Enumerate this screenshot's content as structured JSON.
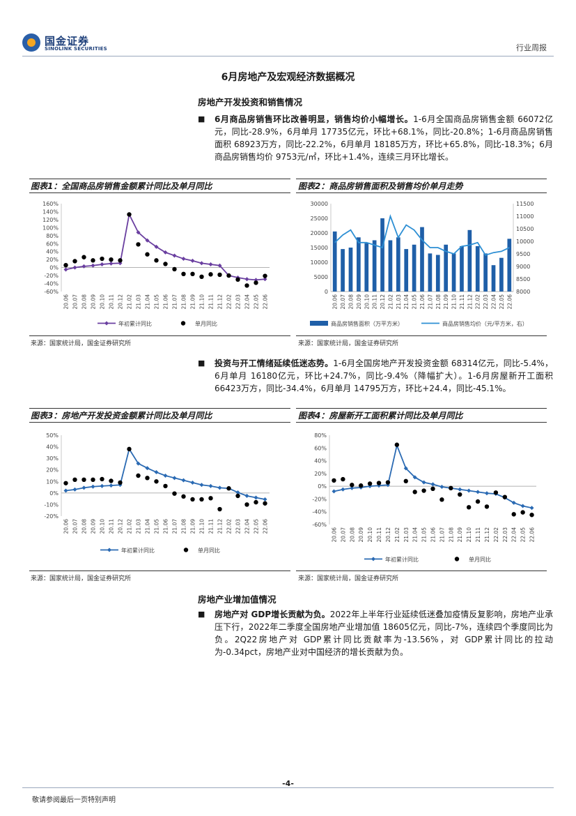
{
  "header": {
    "logo_cn": "国金证券",
    "logo_en": "SINOLINK SECURITIES",
    "report_type": "行业周报"
  },
  "main_title": "6月房地产及宏观经济数据概况",
  "sections": {
    "s1_title": "房地产开发投资和销售情况",
    "p1_bold": "6月商品房销售环比改善明显，销售均价小幅增长。",
    "p1_rest": "1-6月全国商品房销售金额 66072亿元，同比-28.9%，6月单月 17735亿元，环比+68.1%，同比-20.8%；1-6月商品房销售面积 68923万方，同比-22.2%，6月单月 18185万方，环比+65.8%，同比-18.3%；6月商品房销售均价 9753元/㎡，环比+1.4%，连续三月环比增长。",
    "p2_bold": "投资与开工情绪延续低迷态势。",
    "p2_rest": "1-6月全国房地产开发投资金额 68314亿元，同比-5.4%，6月单月 16180亿元，环比+24.7%，同比-9.4%（降幅扩大）。1-6月房屋新开工面积 66423万方，同比-34.4%，6月单月 14795万方，环比+24.4，同比-45.1%。",
    "s2_title": "房地产业增加值情况",
    "p3_bold": "房地产对 GDP增长贡献为负。",
    "p3_rest": "2022年上半年行业延续低迷叠加疫情反复影响，房地产业承压下行，2022年二季度全国房地产业增加值 18605亿元，同比-7%，连续四个季度同比为负。2Q22房地产对 GDP累计同比贡献率为-13.56%，对 GDP累计同比的拉动为-0.34pct，房地产业对中国经济的增长贡献为负。"
  },
  "figures": {
    "f1_title": "图表1：全国商品房销售金额累计同比及单月同比",
    "f2_title": "图表2：商品房销售面积及销售均价单月走势",
    "f3_title": "图表3：房地产开发投资金额累计同比及单月同比",
    "f4_title": "图表4：房屋新开工面积累计同比及单月同比",
    "source": "来源：国家统计局，国金证券研究所"
  },
  "footer": {
    "page": "-4-",
    "disclaimer": "敬请参阅最后一页特别声明"
  },
  "chart_data": [
    {
      "id": "fig1",
      "type": "line",
      "categories": [
        "20.06",
        "20.07",
        "20.08",
        "20.09",
        "20.10",
        "20.11",
        "20.12",
        "21.02",
        "21.03",
        "21.04",
        "21.05",
        "21.06",
        "21.07",
        "21.08",
        "21.09",
        "21.10",
        "21.11",
        "21.12",
        "22.02",
        "22.03",
        "22.04",
        "22.05",
        "22.06"
      ],
      "ylim": [
        -60,
        160
      ],
      "yticks": [
        -60,
        -40,
        -20,
        0,
        20,
        40,
        60,
        80,
        100,
        120,
        140,
        160
      ],
      "ytick_suffix": "%",
      "series": [
        {
          "name": "年初累计同比",
          "style": "line-diamond",
          "color": "#6a3fa0",
          "values": [
            -5,
            0,
            3,
            5,
            8,
            10,
            11,
            133,
            88,
            68,
            52,
            38,
            30,
            22,
            17,
            11,
            8,
            5,
            -20,
            -25,
            -29,
            -31,
            -29
          ]
        },
        {
          "name": "单月同比",
          "style": "dot",
          "color": "#000000",
          "values": [
            6,
            16,
            26,
            18,
            22,
            20,
            18,
            133,
            58,
            33,
            18,
            9,
            -4,
            -16,
            -16,
            -23,
            -17,
            -18,
            -20,
            -30,
            -45,
            -38,
            -21
          ]
        }
      ]
    },
    {
      "id": "fig2",
      "type": "bar-line",
      "categories": [
        "20.06",
        "20.07",
        "20.08",
        "20.09",
        "20.10",
        "20.11",
        "20.12",
        "21.02",
        "21.03",
        "21.04",
        "21.05",
        "21.06",
        "21.07",
        "21.08",
        "21.09",
        "21.10",
        "21.11",
        "21.12",
        "22.02",
        "22.03",
        "22.04",
        "22.05",
        "22.06"
      ],
      "ylim_left": [
        0,
        30000
      ],
      "yticks_left": [
        0,
        5000,
        10000,
        15000,
        20000,
        25000,
        30000
      ],
      "ylim_right": [
        8000,
        11500
      ],
      "yticks_right": [
        8000,
        8500,
        9000,
        9500,
        10000,
        10500,
        11000,
        11500
      ],
      "series": [
        {
          "name": "商品房销售面积（万平方米）",
          "style": "bar",
          "color": "#1f5fa8",
          "axis": "left",
          "values": [
            20500,
            14500,
            15000,
            18500,
            16500,
            17500,
            25000,
            17500,
            18500,
            14500,
            16000,
            22000,
            13000,
            12500,
            16000,
            13000,
            15500,
            21000,
            15500,
            13000,
            9000,
            11500,
            18000
          ]
        },
        {
          "name": "商品房销售均价（元/平方米，右）",
          "style": "line",
          "color": "#2d8fd4",
          "axis": "right",
          "values": [
            9950,
            10250,
            10450,
            9950,
            9950,
            9850,
            9750,
            11000,
            10150,
            10650,
            10450,
            10050,
            9750,
            9750,
            9600,
            9500,
            9800,
            9850,
            9950,
            9450,
            9550,
            9600,
            9750
          ]
        }
      ]
    },
    {
      "id": "fig3",
      "type": "line",
      "categories": [
        "20.06",
        "20.07",
        "20.08",
        "20.09",
        "20.10",
        "20.11",
        "20.12",
        "21.02",
        "21.03",
        "21.04",
        "21.05",
        "21.06",
        "21.07",
        "21.08",
        "21.09",
        "21.10",
        "21.11",
        "21.12",
        "22.02",
        "22.03",
        "22.04",
        "22.05",
        "22.06"
      ],
      "ylim": [
        -20,
        50
      ],
      "yticks": [
        -20,
        -10,
        0,
        10,
        20,
        30,
        40,
        50
      ],
      "ytick_suffix": "%",
      "series": [
        {
          "name": "年初累计同比",
          "style": "line-diamond",
          "color": "#2a6ab3",
          "values": [
            2,
            3,
            4.5,
            5.5,
            6,
            6.5,
            7,
            38,
            25.5,
            21.5,
            18,
            15,
            13,
            11,
            9,
            7,
            6,
            4.5,
            4,
            0.5,
            -2.5,
            -4,
            -5.5
          ]
        },
        {
          "name": "单月同比",
          "style": "dot",
          "color": "#000000",
          "values": [
            8.5,
            11.5,
            11.5,
            11.5,
            12,
            10.5,
            9,
            38,
            15,
            13,
            10,
            6,
            -0.5,
            -3,
            -5.5,
            -5.5,
            -4.5,
            -14,
            4,
            -2.5,
            -10,
            -8,
            -9
          ]
        }
      ]
    },
    {
      "id": "fig4",
      "type": "line",
      "categories": [
        "20.06",
        "20.07",
        "20.08",
        "20.09",
        "20.10",
        "20.11",
        "20.12",
        "21.02",
        "21.03",
        "21.04",
        "21.05",
        "21.06",
        "21.07",
        "21.08",
        "21.09",
        "21.10",
        "21.11",
        "21.12",
        "22.02",
        "22.03",
        "22.04",
        "22.05",
        "22.06"
      ],
      "ylim": [
        -60,
        80
      ],
      "yticks": [
        -60,
        -40,
        -20,
        0,
        20,
        40,
        60,
        80
      ],
      "ytick_suffix": "%",
      "series": [
        {
          "name": "年初累计同比",
          "style": "line-diamond",
          "color": "#2a6ab3",
          "values": [
            -8,
            -5,
            -3,
            -2,
            0,
            1,
            2,
            64,
            28,
            14,
            6,
            3,
            -1,
            -3,
            -5,
            -7,
            -9,
            -11,
            -12,
            -18,
            -26,
            -31,
            -34
          ]
        },
        {
          "name": "单月同比",
          "style": "dot",
          "color": "#000000",
          "values": [
            9,
            11,
            2,
            1,
            4,
            5,
            6,
            65,
            8,
            -9,
            -7,
            -4,
            -21,
            -3,
            -13,
            -33,
            -24,
            -32,
            -10,
            -17,
            -44,
            -41,
            -45
          ]
        }
      ]
    }
  ]
}
